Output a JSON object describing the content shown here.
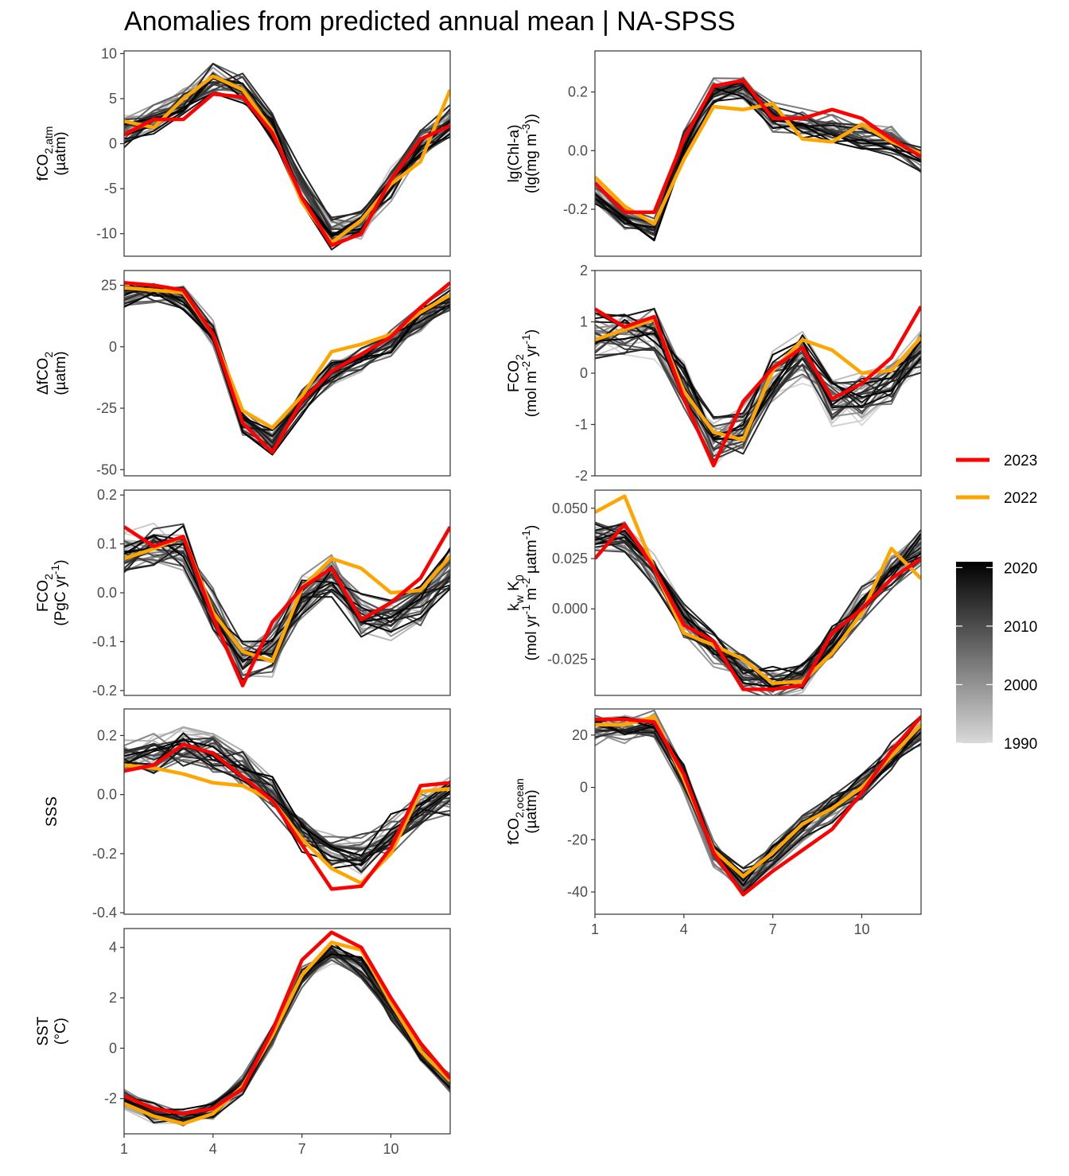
{
  "title": "Anomalies from predicted annual mean | NA-SPSS",
  "legend": {
    "series": [
      {
        "label": "2023",
        "color": "#ff0000"
      },
      {
        "label": "2022",
        "color": "#ffa500"
      }
    ],
    "colorbar": {
      "ticks": [
        "2020",
        "2010",
        "2000",
        "1990"
      ],
      "min": 1990,
      "max": 2021,
      "colors": [
        "#d9d9d9",
        "#000000"
      ]
    }
  },
  "chart_data": [
    {
      "type": "line",
      "id": "fco2atm",
      "ylabel": {
        "main": "fCO",
        "sub": "2,atm",
        "line2": "(µatm)"
      },
      "ylim": [
        -12.5,
        10.3
      ],
      "yticks": [
        10,
        5,
        0,
        -5,
        -10
      ],
      "yticklabels": [
        "10",
        "5",
        "0",
        "-5",
        "-10"
      ],
      "x": [
        1,
        2,
        3,
        4,
        5,
        6,
        7,
        8,
        9,
        10,
        11,
        12
      ],
      "xticks": [
        1,
        4,
        7,
        10
      ],
      "mean": [
        1.5,
        2.5,
        4.5,
        7.0,
        6.0,
        2.0,
        -5.0,
        -10.0,
        -9.0,
        -4.5,
        0.0,
        2.5
      ],
      "spread": 1.3,
      "series": [
        {
          "name": "2023",
          "color": "#ff0000",
          "values": [
            1.0,
            2.7,
            2.7,
            5.5,
            5.2,
            1.2,
            -6.0,
            -11.3,
            -10.0,
            -4.0,
            0.5,
            2.0
          ]
        },
        {
          "name": "2022",
          "color": "#ffa500",
          "values": [
            2.5,
            1.8,
            5.0,
            7.5,
            6.0,
            1.5,
            -6.5,
            -11.0,
            -8.5,
            -4.5,
            -2.0,
            6.0
          ]
        }
      ]
    },
    {
      "type": "line",
      "id": "chla",
      "ylabel": {
        "main": "lg(Chl-a)",
        "line2": "(lg(mg m",
        "sup": "-3",
        "tail": "))"
      },
      "ylim": [
        -0.36,
        0.34
      ],
      "yticks": [
        0.2,
        0.0,
        -0.2
      ],
      "yticklabels": [
        "0.2",
        "0.0",
        "-0.2"
      ],
      "x": [
        1,
        2,
        3,
        4,
        5,
        6,
        7,
        8,
        9,
        10,
        11,
        12
      ],
      "xticks": [
        1,
        4,
        7,
        10
      ],
      "mean": [
        -0.14,
        -0.24,
        -0.27,
        0.02,
        0.2,
        0.21,
        0.11,
        0.09,
        0.07,
        0.05,
        0.03,
        -0.03
      ],
      "spread": 0.035,
      "series": [
        {
          "name": "2023",
          "color": "#ff0000",
          "values": [
            -0.11,
            -0.21,
            -0.21,
            0.04,
            0.22,
            0.24,
            0.11,
            0.11,
            0.14,
            0.11,
            0.04,
            -0.02
          ]
        },
        {
          "name": "2022",
          "color": "#ffa500",
          "values": [
            -0.09,
            -0.19,
            -0.25,
            -0.03,
            0.15,
            0.14,
            0.16,
            0.04,
            0.03,
            0.09,
            0.03,
            -0.01
          ]
        }
      ]
    },
    {
      "type": "line",
      "id": "dfco2",
      "ylabel": {
        "main": "ΔfCO",
        "sub": "2",
        "line2": "(µatm)"
      },
      "ylim": [
        -52.5,
        31
      ],
      "yticks": [
        25,
        0,
        -25,
        -50
      ],
      "yticklabels": [
        "25",
        "0",
        "-25",
        "-50"
      ],
      "x": [
        1,
        2,
        3,
        4,
        5,
        6,
        7,
        8,
        9,
        10,
        11,
        12
      ],
      "xticks": [
        1,
        4,
        7,
        10
      ],
      "mean": [
        22,
        22,
        20,
        5,
        -30,
        -38,
        -22,
        -10,
        -5,
        2,
        12,
        20
      ],
      "spread": 4,
      "series": [
        {
          "name": "2023",
          "color": "#ff0000",
          "values": [
            26,
            25,
            23,
            5,
            -31,
            -43,
            -22,
            -10,
            -3,
            4,
            16,
            26
          ]
        },
        {
          "name": "2022",
          "color": "#ffa500",
          "values": [
            24,
            23,
            22,
            5,
            -26,
            -33,
            -20,
            -2,
            1,
            5,
            14,
            21
          ]
        }
      ]
    },
    {
      "type": "line",
      "id": "fco2flux",
      "ylabel": {
        "main": "FCO",
        "sub": "2",
        "line2": "(mol m",
        "sup": "-2",
        "tail": " yr",
        "sup2": "-1",
        "tail2": ")"
      },
      "ylim": [
        -2.0,
        2.0
      ],
      "yticks": [
        2,
        1,
        0,
        -1,
        -2
      ],
      "yticklabels": [
        "2",
        "1",
        "0",
        "-1",
        "-2"
      ],
      "x": [
        1,
        2,
        3,
        4,
        5,
        6,
        7,
        8,
        9,
        10,
        11,
        12
      ],
      "xticks": [
        1,
        4,
        7,
        10
      ],
      "mean": [
        0.7,
        0.8,
        0.8,
        -0.3,
        -1.3,
        -1.1,
        -0.1,
        0.3,
        -0.5,
        -0.5,
        -0.2,
        0.5
      ],
      "spread": 0.35,
      "series": [
        {
          "name": "2023",
          "color": "#ff0000",
          "values": [
            1.25,
            0.9,
            1.1,
            -0.5,
            -1.8,
            -0.55,
            0.1,
            0.5,
            -0.5,
            -0.2,
            0.3,
            1.3
          ]
        },
        {
          "name": "2022",
          "color": "#ffa500",
          "values": [
            0.65,
            0.85,
            1.05,
            -0.35,
            -1.15,
            -1.3,
            0.05,
            0.65,
            0.45,
            0.0,
            0.05,
            0.7
          ]
        }
      ]
    },
    {
      "type": "line",
      "id": "fco2pgc",
      "ylabel": {
        "main": "FCO",
        "sub": "2",
        "line2": "(PgC yr",
        "sup": "-1",
        "tail": ")"
      },
      "ylim": [
        -0.21,
        0.21
      ],
      "yticks": [
        0.2,
        0.1,
        0.0,
        -0.1,
        -0.2
      ],
      "yticklabels": [
        "0.2",
        "0.1",
        "0.0",
        "-0.1",
        "-0.2"
      ],
      "x": [
        1,
        2,
        3,
        4,
        5,
        6,
        7,
        8,
        9,
        10,
        11,
        12
      ],
      "xticks": [
        1,
        4,
        7,
        10
      ],
      "mean": [
        0.08,
        0.09,
        0.09,
        -0.03,
        -0.14,
        -0.12,
        -0.01,
        0.04,
        -0.05,
        -0.05,
        -0.02,
        0.05
      ],
      "spread": 0.035,
      "series": [
        {
          "name": "2023",
          "color": "#ff0000",
          "values": [
            0.135,
            0.095,
            0.115,
            -0.05,
            -0.19,
            -0.06,
            0.01,
            0.05,
            -0.055,
            -0.02,
            0.03,
            0.135
          ]
        },
        {
          "name": "2022",
          "color": "#ffa500",
          "values": [
            0.07,
            0.09,
            0.115,
            -0.04,
            -0.12,
            -0.14,
            0.01,
            0.07,
            0.05,
            0.0,
            0.005,
            0.075
          ]
        }
      ]
    },
    {
      "type": "line",
      "id": "kwk0",
      "ylabel": {
        "main": "k",
        "sub": "w",
        "main2": " K",
        "sub2": "0",
        "line2": "(mol yr",
        "sup": "-1",
        "tail": " m",
        "sup2": "-2",
        "tail2": " µatm",
        "sup3": "-1",
        "tail3": ")"
      },
      "ylim": [
        -0.043,
        0.059
      ],
      "yticks": [
        0.05,
        0.025,
        0.0,
        -0.025
      ],
      "yticklabels": [
        "0.050",
        "0.025",
        "0.000",
        "-0.025"
      ],
      "x": [
        1,
        2,
        3,
        4,
        5,
        6,
        7,
        8,
        9,
        10,
        11,
        12
      ],
      "xticks": [
        1,
        4,
        7,
        10
      ],
      "mean": [
        0.035,
        0.035,
        0.018,
        -0.005,
        -0.02,
        -0.032,
        -0.037,
        -0.034,
        -0.015,
        0.002,
        0.018,
        0.03
      ],
      "spread": 0.006,
      "series": [
        {
          "name": "2023",
          "color": "#ff0000",
          "values": [
            0.025,
            0.042,
            0.02,
            -0.008,
            -0.016,
            -0.04,
            -0.04,
            -0.038,
            -0.012,
            0.0,
            0.015,
            0.025
          ]
        },
        {
          "name": "2022",
          "color": "#ffa500",
          "values": [
            0.048,
            0.056,
            0.02,
            -0.012,
            -0.018,
            -0.025,
            -0.037,
            -0.036,
            -0.022,
            -0.002,
            0.03,
            0.015
          ]
        }
      ]
    },
    {
      "type": "line",
      "id": "sss",
      "ylabel": {
        "main": "SSS"
      },
      "ylim": [
        -0.405,
        0.29
      ],
      "yticks": [
        0.2,
        0.0,
        -0.2,
        -0.4
      ],
      "yticklabels": [
        "0.2",
        "0.0",
        "-0.2",
        "-0.4"
      ],
      "x": [
        1,
        2,
        3,
        4,
        5,
        6,
        7,
        8,
        9,
        10,
        11,
        12
      ],
      "xticks": [
        1,
        4,
        7,
        10
      ],
      "mean": [
        0.12,
        0.14,
        0.16,
        0.14,
        0.08,
        0.0,
        -0.12,
        -0.2,
        -0.2,
        -0.14,
        -0.06,
        0.0
      ],
      "spread": 0.05,
      "series": [
        {
          "name": "2023",
          "color": "#ff0000",
          "values": [
            0.08,
            0.1,
            0.17,
            0.14,
            0.06,
            -0.02,
            -0.17,
            -0.32,
            -0.31,
            -0.18,
            0.03,
            0.04
          ]
        },
        {
          "name": "2022",
          "color": "#ffa500",
          "values": [
            0.1,
            0.09,
            0.07,
            0.04,
            0.03,
            -0.02,
            -0.15,
            -0.25,
            -0.3,
            -0.2,
            0.01,
            0.02
          ]
        }
      ]
    },
    {
      "type": "line",
      "id": "fco2ocean",
      "ylabel": {
        "main": "fCO",
        "sub": "2,ocean",
        "line2": "(µatm)"
      },
      "ylim": [
        -48.5,
        30
      ],
      "yticks": [
        20,
        0,
        -20,
        -40
      ],
      "yticklabels": [
        "20",
        "0",
        "-20",
        "-40"
      ],
      "x": [
        1,
        2,
        3,
        4,
        5,
        6,
        7,
        8,
        9,
        10,
        11,
        12
      ],
      "xticks": [
        1,
        4,
        7,
        10
      ],
      "mean": [
        22,
        23,
        24,
        4,
        -25,
        -36,
        -27,
        -16,
        -8,
        0,
        12,
        22
      ],
      "spread": 4,
      "series": [
        {
          "name": "2023",
          "color": "#ff0000",
          "values": [
            26,
            26,
            25,
            5,
            -25,
            -41,
            -32,
            -24,
            -16,
            -2,
            14,
            27
          ]
        },
        {
          "name": "2022",
          "color": "#ffa500",
          "values": [
            24,
            24,
            27,
            3,
            -24,
            -34,
            -25,
            -14,
            -8,
            0,
            12,
            24
          ]
        }
      ]
    },
    {
      "type": "line",
      "id": "sst",
      "ylabel": {
        "main": "SST",
        "line2": "(°C)"
      },
      "ylim": [
        -3.4,
        4.75
      ],
      "yticks": [
        4,
        2,
        0,
        -2
      ],
      "yticklabels": [
        "4",
        "2",
        "0",
        "-2"
      ],
      "x": [
        1,
        2,
        3,
        4,
        5,
        6,
        7,
        8,
        9,
        10,
        11,
        12
      ],
      "xticks": [
        1,
        4,
        7,
        10
      ],
      "mean": [
        -2.0,
        -2.6,
        -2.8,
        -2.5,
        -1.5,
        0.5,
        2.8,
        3.8,
        3.2,
        1.5,
        -0.2,
        -1.4
      ],
      "spread": 0.3,
      "series": [
        {
          "name": "2023",
          "color": "#ff0000",
          "values": [
            -1.9,
            -2.4,
            -2.6,
            -2.4,
            -1.6,
            0.7,
            3.5,
            4.6,
            4.0,
            2.0,
            0.2,
            -1.2
          ]
        },
        {
          "name": "2022",
          "color": "#ffa500",
          "values": [
            -2.2,
            -2.7,
            -3.0,
            -2.6,
            -1.5,
            0.5,
            2.9,
            4.2,
            3.9,
            1.8,
            -0.1,
            -1.3
          ]
        }
      ]
    }
  ]
}
